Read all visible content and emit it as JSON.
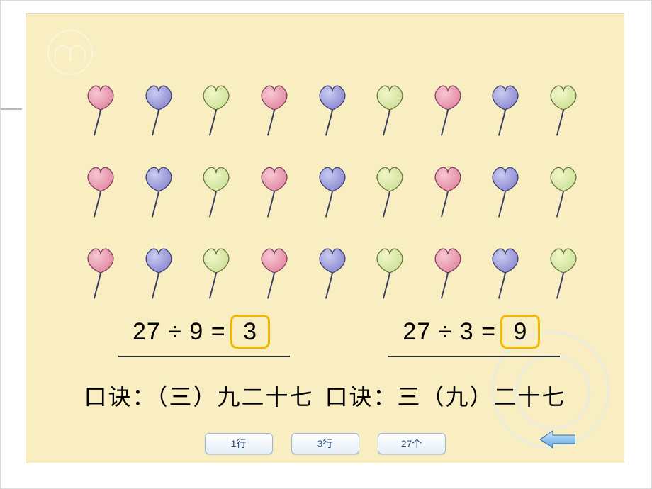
{
  "slide": {
    "background_color": "#f9eec2"
  },
  "balloons": {
    "rows": 3,
    "cols": 9,
    "colors": {
      "pink": {
        "fill1": "#f7c7d3",
        "fill2": "#e38aa4",
        "stroke": "#7c4258"
      },
      "purple": {
        "fill1": "#c9cbf0",
        "fill2": "#8e8bd2",
        "stroke": "#3f3f70"
      },
      "green": {
        "fill1": "#f2f6c7",
        "fill2": "#cde29a",
        "stroke": "#6a7340"
      }
    },
    "pattern": [
      "pink",
      "purple",
      "green",
      "pink",
      "purple",
      "green",
      "pink",
      "purple",
      "green"
    ],
    "stick_color": "#3a4060"
  },
  "equations": {
    "left": {
      "expr": "27 ÷ 9 =",
      "answer": "3"
    },
    "right": {
      "expr": "27 ÷ 3 =",
      "answer": "9"
    },
    "answer_box": {
      "border_color": "#f2b800",
      "radius": 9
    }
  },
  "mnemonics": {
    "left": "口诀：（三）九二十七",
    "right": "口诀：三（九）二十七"
  },
  "buttons": {
    "b1": "1行",
    "b2": "3行",
    "b3": "27个"
  },
  "arrow": {
    "fill1": "#cfe8fb",
    "fill2": "#5aa4e0",
    "stroke": "#2a6aa8"
  }
}
